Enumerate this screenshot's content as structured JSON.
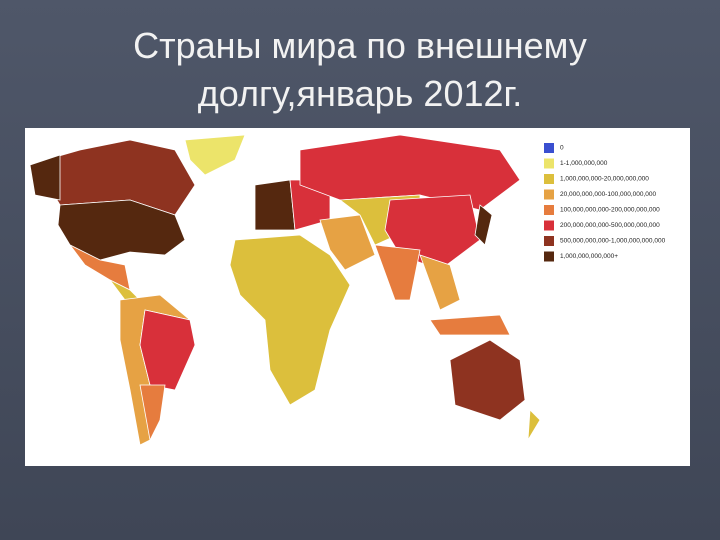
{
  "title_lines": [
    "Страны мира по внешнему",
    "долгу,январь 2012г."
  ],
  "legend": {
    "items": [
      {
        "label": "0",
        "color": "#3a4fd0"
      },
      {
        "label": "1-1,000,000,000",
        "color": "#ece46a"
      },
      {
        "label": "1,000,000,000-20,000,000,000",
        "color": "#dcbf3c"
      },
      {
        "label": "20,000,000,000-100,000,000,000",
        "color": "#e6a244"
      },
      {
        "label": "100,000,000,000-200,000,000,000",
        "color": "#e67c3e"
      },
      {
        "label": "200,000,000,000-500,000,000,000",
        "color": "#d8303a"
      },
      {
        "label": "500,000,000,000-1,000,000,000,000",
        "color": "#8e3320"
      },
      {
        "label": "1,000,000,000,000+",
        "color": "#55280f"
      }
    ]
  }
}
